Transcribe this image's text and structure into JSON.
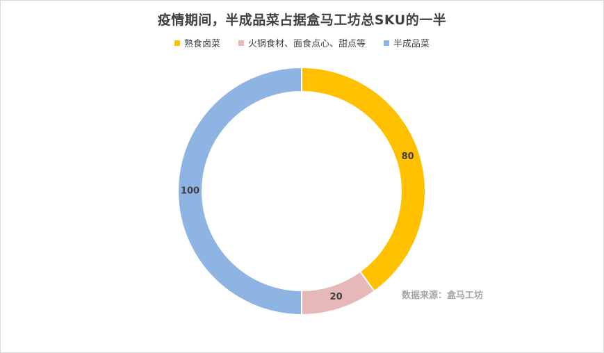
{
  "chart_data": {
    "type": "pie",
    "variant": "donut",
    "title": "疫情期间，半成品菜占据盒马工坊总SKU的一半",
    "categories": [
      "熟食卤菜",
      "火锅食材、面食点心、甜点等",
      "半成品菜"
    ],
    "values": [
      80,
      20,
      100
    ],
    "colors": [
      "#ffc000",
      "#e6b9b8",
      "#8eb4e3"
    ],
    "legend": "top",
    "start_angle_deg": 0,
    "direction": "clockwise"
  },
  "source_note": "数据来源：盒马工坊"
}
